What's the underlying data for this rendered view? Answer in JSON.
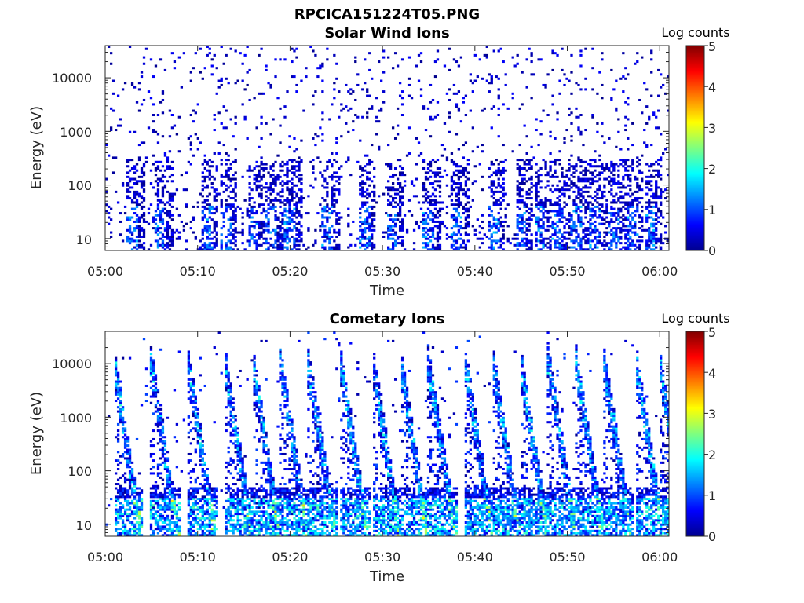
{
  "figure": {
    "title": "RPCICA151224T05.PNG"
  },
  "chart_data": [
    {
      "type": "heatmap",
      "title": "Solar Wind Ions",
      "xlabel": "Time",
      "ylabel": "Energy (eV)",
      "x_ticks": [
        "05:00",
        "05:10",
        "05:20",
        "05:30",
        "05:40",
        "05:50",
        "06:00"
      ],
      "y_scale": "log",
      "y_ticks": [
        "10",
        "100",
        "1000",
        "10000"
      ],
      "ylim": [
        6,
        40000
      ],
      "xlim": [
        "05:00",
        "06:01"
      ],
      "colorbar": {
        "label": "Log counts",
        "ticks": [
          "0",
          "1",
          "2",
          "3",
          "4",
          "5"
        ],
        "range": [
          0,
          5
        ],
        "colormap": "jet"
      },
      "seed": 11,
      "description_of_data": "sparse scattered single-count bins across all energies, denser below 100 eV",
      "bursts_min": [
        3,
        6,
        11,
        13,
        16,
        18,
        20,
        24,
        28,
        31,
        35,
        38,
        42,
        45,
        47,
        49,
        51,
        53,
        55,
        57,
        59
      ],
      "max_log_counts": 1.7
    },
    {
      "type": "heatmap",
      "title": "Cometary Ions",
      "xlabel": "Time",
      "ylabel": "Energy (eV)",
      "x_ticks": [
        "05:00",
        "05:10",
        "05:20",
        "05:30",
        "05:40",
        "05:50",
        "06:00"
      ],
      "y_scale": "log",
      "y_ticks": [
        "10",
        "100",
        "1000",
        "10000"
      ],
      "ylim": [
        6,
        40000
      ],
      "xlim": [
        "05:00",
        "06:01"
      ],
      "colorbar": {
        "label": "Log counts",
        "ticks": [
          "0",
          "1",
          "2",
          "3",
          "4",
          "5"
        ],
        "range": [
          0,
          5
        ],
        "colormap": "jet"
      },
      "seed": 29,
      "bursts_min": [
        1.5,
        5.5,
        9.5,
        13.5,
        16.5,
        19.5,
        22.5,
        26,
        29.5,
        32.5,
        35.5,
        39.5,
        42.5,
        45.5,
        48.5,
        51.5,
        54.5,
        58,
        60.5
      ],
      "max_log_counts": 3.4
    }
  ]
}
